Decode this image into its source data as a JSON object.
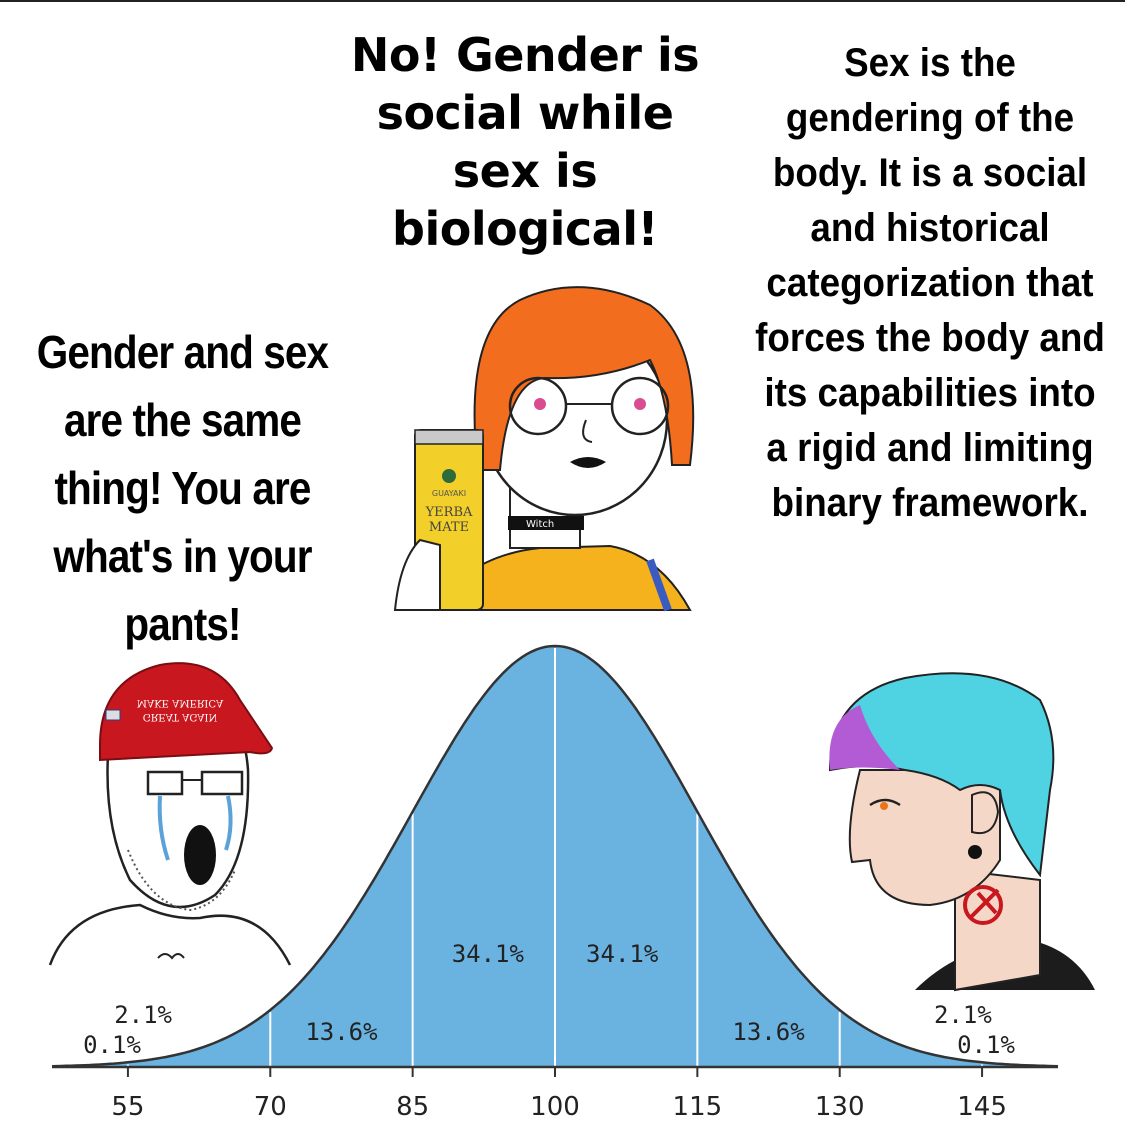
{
  "texts": {
    "middle": "No! Gender is social while sex is biological!",
    "right": "Sex is the gendering of the body. It is a social and historical categorization that forces the body and its capabilities into a rigid and limiting binary framework.",
    "left": "Gender and sex are the same thing! You are what's in your pants!"
  },
  "props": {
    "hat_text_1": "MAKE AMERICA",
    "hat_text_2": "GREAT AGAIN",
    "can_brand": "GUAYAKI",
    "can_label_1": "YERBA",
    "can_label_2": "MATE",
    "choker_text": "Witch"
  },
  "colors": {
    "curve_fill": "#6ab2e0",
    "curve_stroke": "#333333",
    "hair_orange": "#f36d1f",
    "hat_red": "#c8171e",
    "shirt_yellow": "#f6b21c",
    "hair_blue": "#4fd3e3",
    "hair_purple": "#b35bd4"
  },
  "chart_data": {
    "type": "area",
    "title": "",
    "xlabel": "",
    "ylabel": "",
    "x_ticks": [
      55,
      70,
      85,
      100,
      115,
      130,
      145
    ],
    "mean": 100,
    "sd": 15,
    "xlim": [
      47,
      153
    ],
    "segments": [
      {
        "from": 55,
        "to": 70,
        "label": "2.1%"
      },
      {
        "from": 70,
        "to": 85,
        "label": "13.6%"
      },
      {
        "from": 85,
        "to": 100,
        "label": "34.1%"
      },
      {
        "from": 100,
        "to": 115,
        "label": "34.1%"
      },
      {
        "from": 115,
        "to": 130,
        "label": "13.6%"
      },
      {
        "from": 130,
        "to": 145,
        "label": "2.1%"
      }
    ],
    "tail_labels": [
      {
        "side": "left",
        "label": "0.1%"
      },
      {
        "side": "right",
        "label": "0.1%"
      }
    ],
    "grid": false
  }
}
